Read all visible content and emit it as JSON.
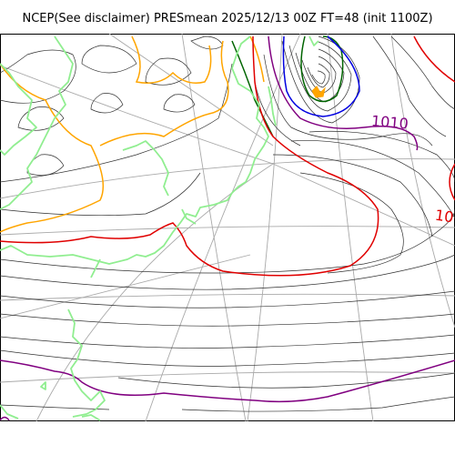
{
  "title": "NCEP(See disclaimer) PRESmean 2025/12/13 00Z FT=48 (init 1100Z)",
  "contour_labels": [
    {
      "text": "1010",
      "color": "#800080"
    },
    {
      "text": "10",
      "color": "#e00000"
    }
  ],
  "colors": {
    "coastline": "#90ee90",
    "graticule": "#a9a9a9",
    "isobar_minor": "#303030",
    "isobar_1010": "#800080",
    "isobar_1020": "#e00000",
    "isobar_1000": "#0000e0",
    "isobar_990": "#006400",
    "isobar_orange": "#ffa500",
    "low_center": "#ffa500"
  }
}
